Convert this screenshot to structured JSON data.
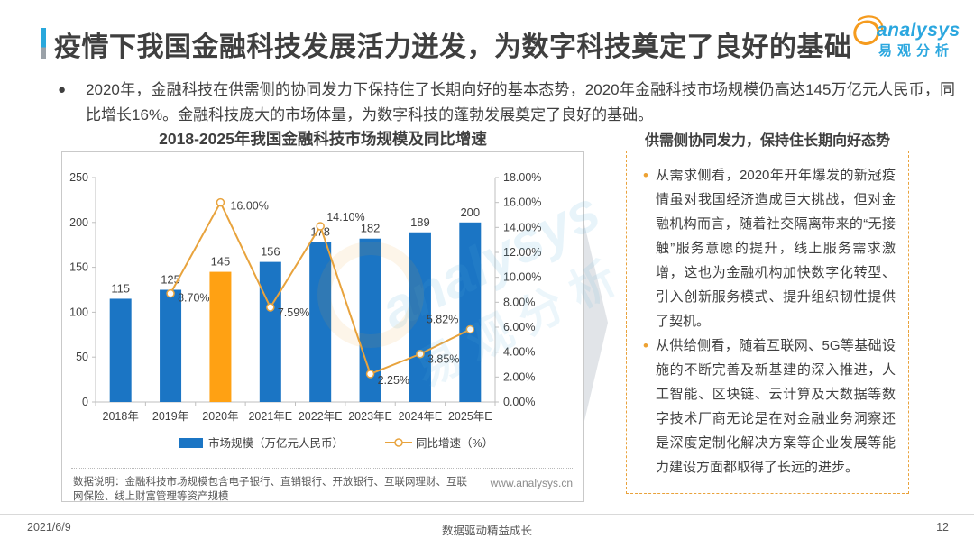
{
  "slide": {
    "title": "疫情下我国金融科技发展活力迸发，为数字科技奠定了良好的基础",
    "summary": "2020年，金融科技在供需侧的协同发力下保持住了长期向好的基本态势，2020年金融科技市场规模仍高达145万亿元人民币，同比增长16%。金融科技庞大的市场体量，为数字科技的蓬勃发展奠定了良好的基础。",
    "logo": {
      "brand": "analysys",
      "brand_cn": "易观分析"
    },
    "watermark": {
      "brand": "analysys",
      "brand_cn": "易观分析"
    },
    "footer": {
      "date": "2021/6/9",
      "slogan": "数据驱动精益成长",
      "page_number": "12"
    }
  },
  "chart": {
    "title": "2018-2025年我国金融科技市场规模及同比增速",
    "note": "数据说明：金融科技市场规模包含电子银行、直销银行、开放银行、互联网理财、互联网保险、线上财富管理等资产规模",
    "source_url": "www.analysys.cn"
  },
  "chart_data": {
    "type": "bar+line",
    "title": "2018-2025年我国金融科技市场规模及同比增速",
    "categories": [
      "2018年",
      "2019年",
      "2020年",
      "2021年E",
      "2022年E",
      "2023年E",
      "2024年E",
      "2025年E"
    ],
    "series": [
      {
        "name": "市场规模（万亿元人民币）",
        "type": "bar",
        "axis": "left",
        "values": [
          115,
          125,
          145,
          156,
          178,
          182,
          189,
          200
        ]
      },
      {
        "name": "同比增速（%）",
        "type": "line",
        "axis": "right",
        "values": [
          null,
          8.7,
          16.0,
          7.59,
          14.1,
          2.25,
          3.85,
          5.82
        ],
        "labels": [
          null,
          "8.70%",
          "16.00%",
          "7.59%",
          "14.10%",
          "2.25%",
          "3.85%",
          "5.82%"
        ]
      }
    ],
    "left_axis": {
      "min": 0,
      "max": 250,
      "step": 50,
      "ticks": [
        "0",
        "50",
        "100",
        "150",
        "200",
        "250"
      ]
    },
    "right_axis": {
      "min": 0,
      "max": 18,
      "step": 2,
      "ticks": [
        "0.00%",
        "2.00%",
        "4.00%",
        "6.00%",
        "8.00%",
        "10.00%",
        "12.00%",
        "14.00%",
        "16.00%",
        "18.00%"
      ]
    },
    "highlight_index": 2,
    "colors": {
      "bar": "#1b75c4",
      "bar_highlight": "#ffa113",
      "line": "#e8a33d",
      "axis": "#bfbfbf",
      "label": "#404040"
    },
    "grid": false,
    "legend_position": "bottom"
  },
  "insight_panel": {
    "title": "供需侧协同发力，保持住长期向好态势",
    "bullets": [
      "从需求侧看，2020年开年爆发的新冠疫情虽对我国经济造成巨大挑战，但对金融机构而言，随着社交隔离带来的“无接触”服务意愿的提升，线上服务需求激增，这也为金融机构加快数字化转型、引入创新服务模式、提升组织韧性提供了契机。",
      "从供给侧看，随着互联网、5G等基础设施的不断完善及新基建的深入推进，人工智能、区块链、云计算及大数据等数字技术厂商无论是在对金融业务洞察还是深度定制化解决方案等企业发展等能力建设方面都取得了长远的进步。"
    ]
  }
}
